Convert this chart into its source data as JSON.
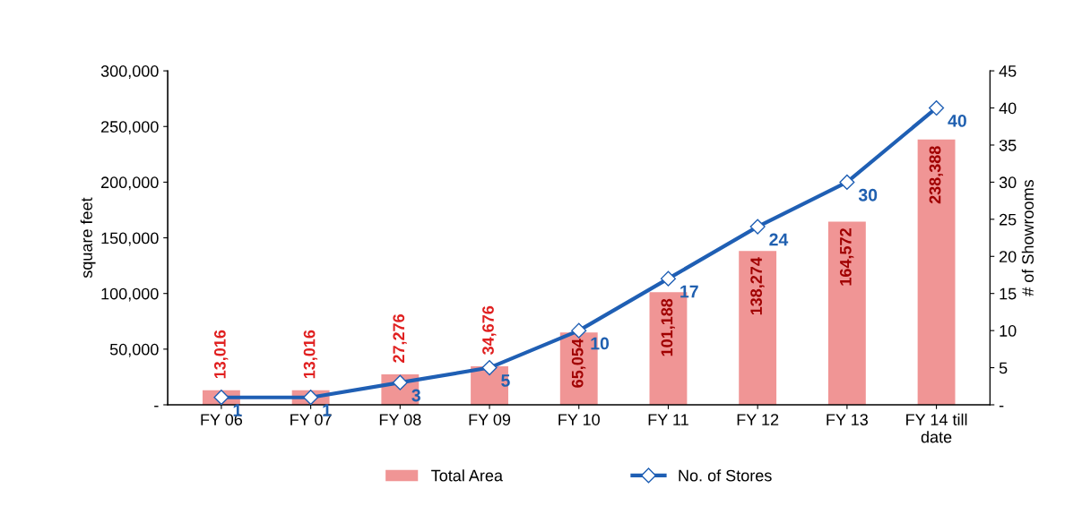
{
  "chart_data": {
    "type": "bar",
    "categories": [
      "FY 06",
      "FY 07",
      "FY 08",
      "FY 09",
      "FY 10",
      "FY 11",
      "FY 12",
      "FY 13",
      "FY 14 till\ndate"
    ],
    "series": [
      {
        "name": "Total Area",
        "color": "#f09595",
        "values": [
          13016,
          13016,
          27276,
          34676,
          65054,
          101188,
          138274,
          164572,
          238388
        ],
        "value_labels": [
          "13,016",
          "13,016",
          "27,276",
          "34,676",
          "65,054",
          "101,188",
          "138,274",
          "164,572",
          "238,388"
        ]
      },
      {
        "name": "No. of Stores",
        "type": "line",
        "axis": "y2",
        "color": "#1f5fb4",
        "values": [
          1,
          1,
          3,
          5,
          10,
          17,
          24,
          30,
          40
        ]
      }
    ],
    "data_labels": true,
    "ylabel": "square feet",
    "y2label": "# of Showrooms",
    "ylim": [
      0,
      300000
    ],
    "yticks": [
      {
        "value": 0,
        "label": "-"
      },
      {
        "value": 50000,
        "label": "50,000"
      },
      {
        "value": 100000,
        "label": "100,000"
      },
      {
        "value": 150000,
        "label": "150,000"
      },
      {
        "value": 200000,
        "label": "200,000"
      },
      {
        "value": 250000,
        "label": "250,000"
      },
      {
        "value": 300000,
        "label": "300,000"
      }
    ],
    "y2lim": [
      0,
      45
    ],
    "y2ticks": [
      {
        "value": 0,
        "label": "-"
      },
      5,
      10,
      15,
      20,
      25,
      30,
      35,
      40,
      45
    ],
    "marker": "diamond",
    "line_style": "solid",
    "legend": "bottom",
    "grid": false
  }
}
